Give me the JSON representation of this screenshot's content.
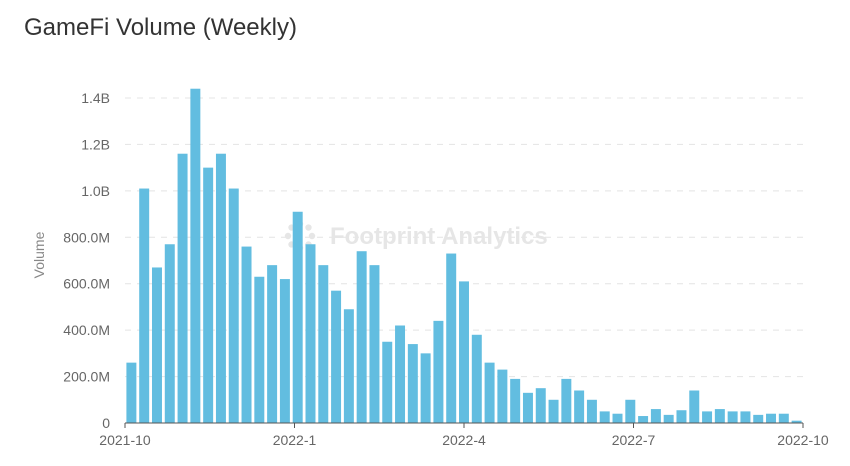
{
  "chart_data": {
    "type": "bar",
    "title": "GameFi Volume (Weekly)",
    "xlabel": "",
    "ylabel": "Volume",
    "watermark": "Footprint Analytics",
    "bar_color": "#62bde0",
    "ylim": [
      0,
      1400000000
    ],
    "yticks": [
      {
        "value": 0,
        "label": "0"
      },
      {
        "value": 200000000,
        "label": "200.0M"
      },
      {
        "value": 400000000,
        "label": "400.0M"
      },
      {
        "value": 600000000,
        "label": "600.0M"
      },
      {
        "value": 800000000,
        "label": "800.0M"
      },
      {
        "value": 1000000000,
        "label": "1.0B"
      },
      {
        "value": 1200000000,
        "label": "1.2B"
      },
      {
        "value": 1400000000,
        "label": "1.4B"
      }
    ],
    "xticks": [
      "2021-10",
      "2022-1",
      "2022-4",
      "2022-7",
      "2022-10"
    ],
    "values": [
      260000000,
      1010000000,
      670000000,
      770000000,
      1160000000,
      1440000000,
      1100000000,
      1160000000,
      1010000000,
      760000000,
      630000000,
      680000000,
      620000000,
      910000000,
      770000000,
      680000000,
      570000000,
      490000000,
      740000000,
      680000000,
      350000000,
      420000000,
      340000000,
      300000000,
      440000000,
      730000000,
      610000000,
      380000000,
      260000000,
      230000000,
      190000000,
      130000000,
      150000000,
      100000000,
      190000000,
      140000000,
      100000000,
      50000000,
      40000000,
      100000000,
      30000000,
      60000000,
      35000000,
      55000000,
      140000000,
      50000000,
      60000000,
      50000000,
      50000000,
      35000000,
      40000000,
      40000000,
      10000000
    ],
    "grid": true
  }
}
